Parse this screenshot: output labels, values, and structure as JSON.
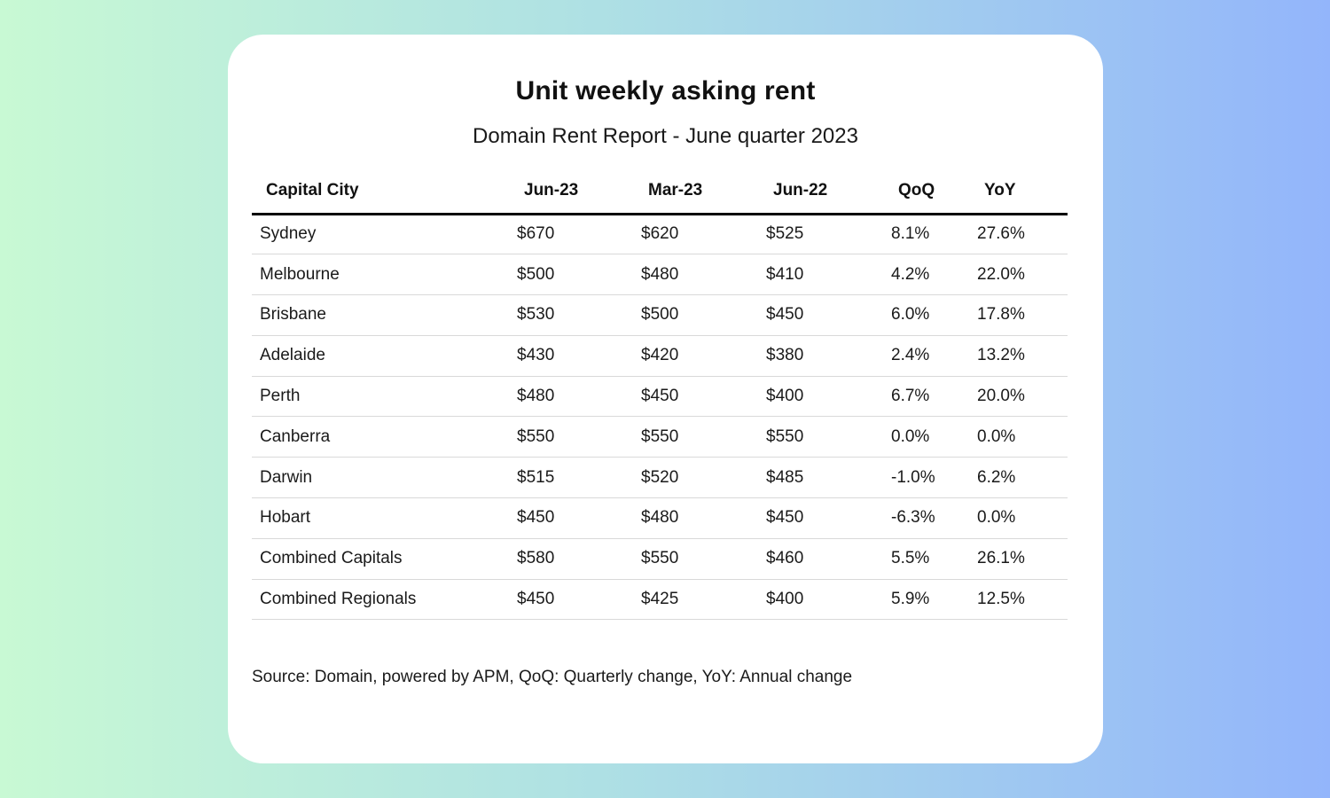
{
  "chart_data": {
    "type": "table",
    "title": "Unit weekly asking rent",
    "subtitle": "Domain Rent Report - June quarter 2023",
    "columns": [
      "Capital City",
      "Jun-23",
      "Mar-23",
      "Jun-22",
      "QoQ",
      "YoY"
    ],
    "rows": [
      [
        "Sydney",
        "$670",
        "$620",
        "$525",
        "8.1%",
        "27.6%"
      ],
      [
        "Melbourne",
        "$500",
        "$480",
        "$410",
        "4.2%",
        "22.0%"
      ],
      [
        "Brisbane",
        "$530",
        "$500",
        "$450",
        "6.0%",
        "17.8%"
      ],
      [
        "Adelaide",
        "$430",
        "$420",
        "$380",
        "2.4%",
        "13.2%"
      ],
      [
        "Perth",
        "$480",
        "$450",
        "$400",
        "6.7%",
        "20.0%"
      ],
      [
        "Canberra",
        "$550",
        "$550",
        "$550",
        "0.0%",
        "0.0%"
      ],
      [
        "Darwin",
        "$515",
        "$520",
        "$485",
        "-1.0%",
        "6.2%"
      ],
      [
        "Hobart",
        "$450",
        "$480",
        "$450",
        "-6.3%",
        "0.0%"
      ],
      [
        "Combined Capitals",
        "$580",
        "$550",
        "$460",
        "5.5%",
        "26.1%"
      ],
      [
        "Combined Regionals",
        "$450",
        "$425",
        "$400",
        "5.9%",
        "12.5%"
      ]
    ],
    "source_note": "Source: Domain, powered by APM, QoQ: Quarterly change, YoY: Annual change",
    "layout_hints": {
      "grid": "horizontal row dividers only",
      "header_rule": "thick black line under header row",
      "column_alignment": "left"
    }
  },
  "colors": {
    "background_gradient_left": "#c8f9d4",
    "background_gradient_right": "#93b5fb",
    "card_background": "#ffffff",
    "text": "#1a1a1a",
    "header_rule": "#000000",
    "row_divider": "#d9d9d9"
  }
}
